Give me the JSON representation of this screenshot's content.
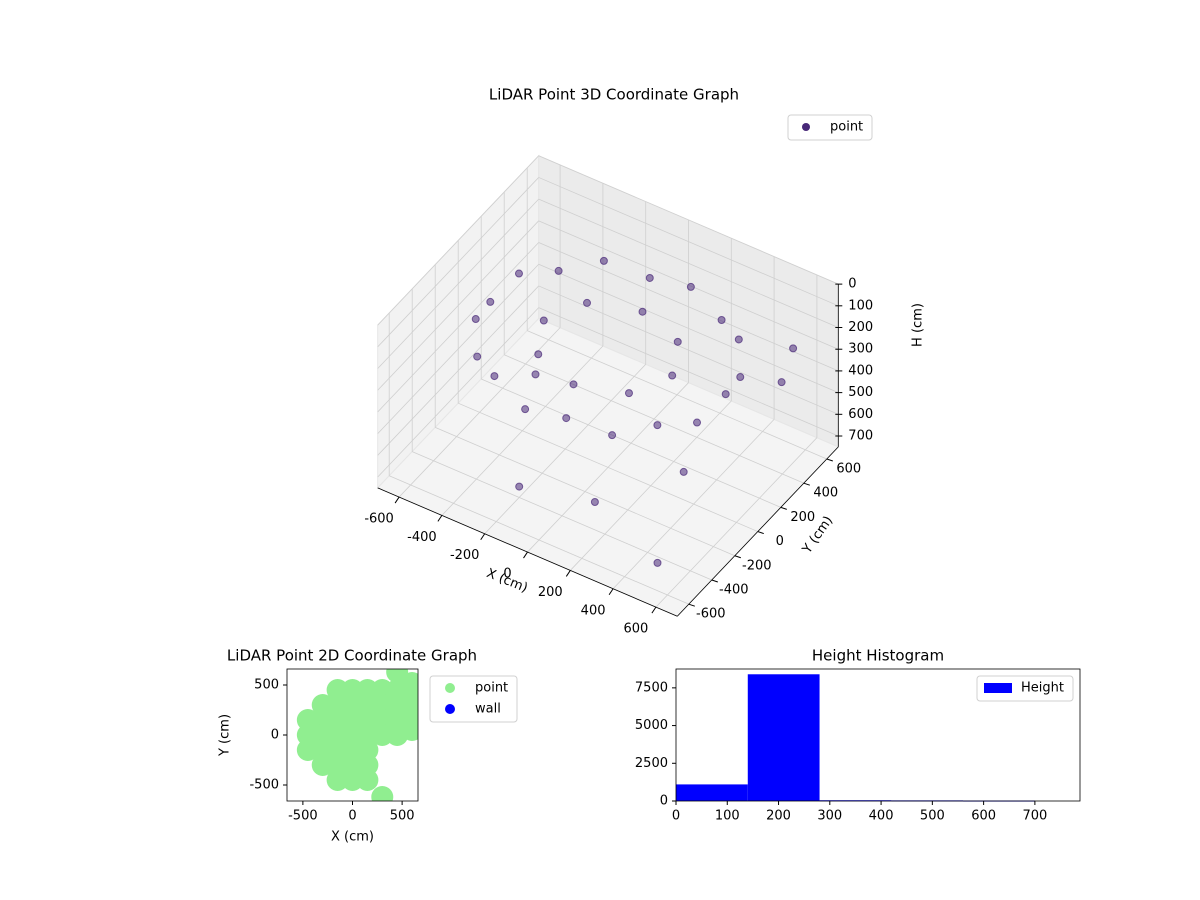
{
  "chart_data": [
    {
      "type": "scatter3d",
      "title": "LiDAR Point 3D Coordinate Graph",
      "xlabel": "X (cm)",
      "ylabel": "Y (cm)",
      "zlabel": "H (cm)",
      "xlim": [
        -700,
        700
      ],
      "ylim": [
        -700,
        700
      ],
      "zlim": [
        0,
        750
      ],
      "z_inverted": true,
      "xticks": [
        -600,
        -400,
        -200,
        0,
        200,
        400,
        600
      ],
      "yticks": [
        -600,
        -400,
        -200,
        0,
        200,
        400,
        600
      ],
      "zticks": [
        0,
        100,
        200,
        300,
        400,
        500,
        600,
        700
      ],
      "grid": true,
      "legend": "upper right",
      "series": [
        {
          "name": "point",
          "color": "#482878",
          "x": [
            550,
            517,
            421,
            275,
            96,
            -96,
            -275,
            -421,
            -517,
            -550,
            -517,
            -421,
            -275,
            -96,
            96,
            275,
            421,
            517,
            300,
            212,
            0,
            -212,
            -300,
            -212,
            0,
            212,
            100,
            300,
            -200,
            500,
            -500,
            650,
            650
          ],
          "y": [
            0,
            188,
            354,
            476,
            542,
            542,
            476,
            354,
            188,
            0,
            -188,
            -354,
            -476,
            -542,
            -542,
            -476,
            -354,
            -188,
            0,
            212,
            300,
            212,
            0,
            -212,
            -300,
            -212,
            -300,
            100,
            -400,
            -500,
            300,
            400,
            300
          ],
          "z": [
            180,
            220,
            180,
            220,
            180,
            220,
            180,
            220,
            180,
            220,
            180,
            220,
            180,
            220,
            180,
            220,
            180,
            220,
            200,
            200,
            200,
            200,
            200,
            200,
            200,
            200,
            700,
            700,
            700,
            700,
            700,
            150,
            250
          ]
        }
      ]
    },
    {
      "type": "scatter",
      "title": "LiDAR Point 2D Coordinate Graph",
      "xlabel": "X (cm)",
      "ylabel": "Y (cm)",
      "xlim": [
        -660,
        660
      ],
      "ylim": [
        -660,
        660
      ],
      "xticks": [
        -500,
        0,
        500
      ],
      "yticks": [
        -500,
        0,
        500
      ],
      "legend": "outside right",
      "series": [
        {
          "name": "point",
          "color": "#90ee90",
          "x": [
            -150,
            0,
            150,
            300,
            450,
            600,
            -300,
            -150,
            0,
            150,
            300,
            450,
            600,
            -450,
            -300,
            -150,
            0,
            150,
            300,
            450,
            600,
            -450,
            -300,
            -150,
            0,
            150,
            300,
            450,
            600,
            -450,
            -300,
            -150,
            0,
            150,
            -300,
            -150,
            0,
            150,
            -150,
            0,
            150,
            300,
            450,
            600
          ],
          "y": [
            450,
            450,
            450,
            450,
            450,
            400,
            300,
            300,
            300,
            300,
            300,
            300,
            300,
            150,
            150,
            150,
            150,
            150,
            150,
            150,
            150,
            0,
            0,
            0,
            0,
            0,
            0,
            0,
            50,
            -150,
            -150,
            -150,
            -150,
            -150,
            -300,
            -300,
            -300,
            -300,
            -450,
            -450,
            -450,
            -620,
            630,
            520
          ]
        },
        {
          "name": "wall",
          "color": "#0000ff",
          "x": [],
          "y": []
        }
      ]
    },
    {
      "type": "histogram",
      "title": "Height Histogram",
      "bins": [
        0,
        140,
        280,
        420,
        560,
        700
      ],
      "counts": [
        1100,
        8400,
        50,
        40,
        30
      ],
      "xlim": [
        0,
        788
      ],
      "ylim": [
        0,
        8750
      ],
      "xticks": [
        0,
        100,
        200,
        300,
        400,
        500,
        600,
        700
      ],
      "yticks": [
        0,
        2500,
        5000,
        7500
      ],
      "legend": "upper right",
      "series_name": "Height",
      "color": "#0000ff"
    }
  ]
}
